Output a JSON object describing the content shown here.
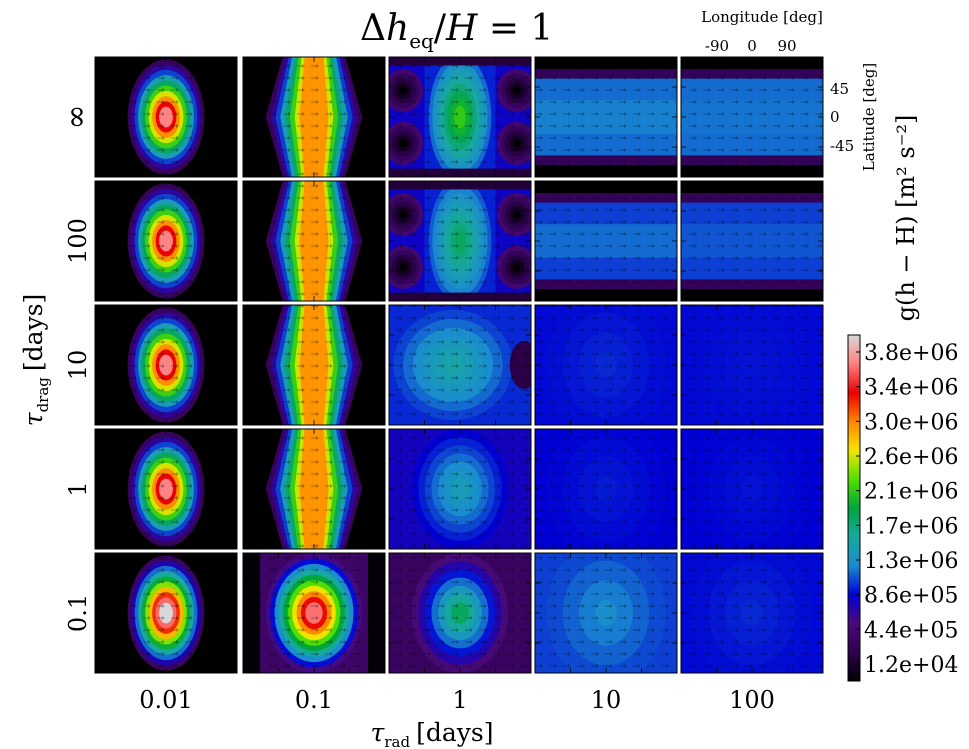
{
  "chart_data": {
    "type": "heatmap",
    "title": "Δh_eq/H = 1",
    "title_parts": {
      "delta": "Δ",
      "h": "h",
      "eq": "eq",
      "slash": "/",
      "H": "H",
      "equals": "= 1"
    },
    "xlabel": {
      "symbol": "τ",
      "sub": "rad",
      "unit": "[days]"
    },
    "ylabel": {
      "symbol": "τ",
      "sub": "drag",
      "unit": "[days]"
    },
    "x_categories": [
      "0.01",
      "0.1",
      "1",
      "10",
      "100"
    ],
    "y_categories": [
      "∞",
      "100",
      "10",
      "1",
      "0.1"
    ],
    "panel_axes": {
      "x_title": "Longitude [deg]",
      "x_ticks": [
        "-90",
        "0",
        "90"
      ],
      "y_title": "Latitude [deg]",
      "y_ticks": [
        "45",
        "0",
        "-45"
      ]
    },
    "colorbar": {
      "label": "g(h − H) [m² s⁻²]",
      "ticks": [
        "3.8e+06",
        "3.4e+06",
        "3.0e+06",
        "2.6e+06",
        "2.1e+06",
        "1.7e+06",
        "1.3e+06",
        "8.6e+05",
        "4.4e+05",
        "1.2e+04"
      ],
      "colors": [
        "#000000",
        "#2e004f",
        "#4a0a7a",
        "#0000d4",
        "#1a8ccf",
        "#18a8a0",
        "#00a63c",
        "#52e000",
        "#f5e400",
        "#ff8400",
        "#e80000",
        "#ff8080",
        "#d8d8d8"
      ],
      "range": [
        12000,
        3800000
      ]
    },
    "panels": [
      [
        {
          "peak": 3500000.0,
          "bg": 12000.0,
          "kind": "blob"
        },
        {
          "peak": 2800000.0,
          "bg": 12000.0,
          "kind": "chevron"
        },
        {
          "peak": 2100000.0,
          "bg": 900000.0,
          "kind": "inf1"
        },
        {
          "peak": 1250000.0,
          "bg": 1200000.0,
          "kind": "band"
        },
        {
          "peak": 1220000.0,
          "bg": 1200000.0,
          "kind": "band"
        }
      ],
      [
        {
          "peak": 3500000.0,
          "bg": 12000.0,
          "kind": "blob"
        },
        {
          "peak": 2800000.0,
          "bg": 12000.0,
          "kind": "chevron"
        },
        {
          "peak": 1800000.0,
          "bg": 900000.0,
          "kind": "inf1"
        },
        {
          "peak": 1200000.0,
          "bg": 1100000.0,
          "kind": "band"
        },
        {
          "peak": 1150000.0,
          "bg": 1100000.0,
          "kind": "band"
        }
      ],
      [
        {
          "peak": 3500000.0,
          "bg": 12000.0,
          "kind": "blob"
        },
        {
          "peak": 2800000.0,
          "bg": 12000.0,
          "kind": "chevron"
        },
        {
          "peak": 1550000.0,
          "bg": 1050000.0,
          "kind": "hourglass"
        },
        {
          "peak": 1050000.0,
          "bg": 980000.0,
          "kind": "flat"
        },
        {
          "peak": 1000000.0,
          "bg": 980000.0,
          "kind": "flat"
        }
      ],
      [
        {
          "peak": 3500000.0,
          "bg": 12000.0,
          "kind": "blob"
        },
        {
          "peak": 2800000.0,
          "bg": 12000.0,
          "kind": "chevron"
        },
        {
          "peak": 1450000.0,
          "bg": 880000.0,
          "kind": "soft"
        },
        {
          "peak": 1020000.0,
          "bg": 960000.0,
          "kind": "flat"
        },
        {
          "peak": 1000000.0,
          "bg": 960000.0,
          "kind": "flat"
        }
      ],
      [
        {
          "peak": 3800000.0,
          "bg": 12000.0,
          "kind": "blob"
        },
        {
          "peak": 3450000.0,
          "bg": 40000.0,
          "kind": "blobwide"
        },
        {
          "peak": 1800000.0,
          "bg": 450000.0,
          "kind": "soft"
        },
        {
          "peak": 1300000.0,
          "bg": 1100000.0,
          "kind": "flat"
        },
        {
          "peak": 1050000.0,
          "bg": 980000.0,
          "kind": "flat"
        }
      ]
    ]
  }
}
